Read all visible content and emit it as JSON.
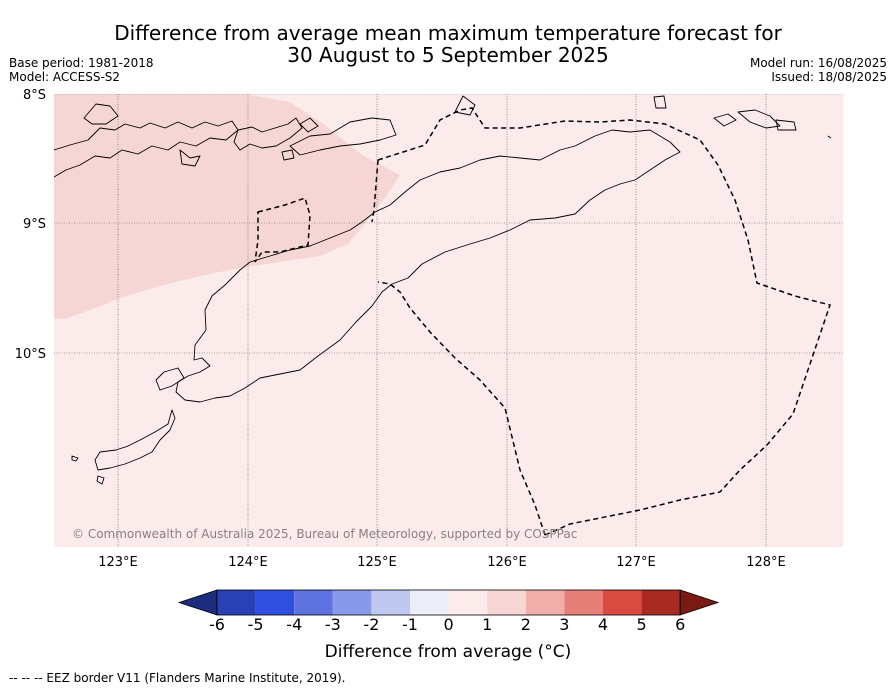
{
  "title": {
    "line1": "Difference from average mean maximum temperature forecast for",
    "line2": "30 August to 5 September 2025"
  },
  "meta": {
    "base_period": "Base period: 1981-2018",
    "model": "Model: ACCESS-S2",
    "model_run": "Model run: 16/08/2025",
    "issued": "Issued: 18/08/2025"
  },
  "map": {
    "lat_labels": [
      "8°S",
      "9°S",
      "10°S"
    ],
    "lon_labels": [
      "123°E",
      "124°E",
      "125°E",
      "126°E",
      "127°E",
      "128°E"
    ],
    "copyright": "© Commonwealth of Australia 2025, Bureau of Meteorology, supported by COSPPac",
    "colors": {
      "anomaly_0_1": "#fbeceb",
      "anomaly_1_2": "#f6d6d4",
      "gridline": "#555555",
      "coastline": "#000000"
    }
  },
  "colorbar": {
    "ticks": [
      "-6",
      "-5",
      "-4",
      "-3",
      "-2",
      "-1",
      "0",
      "1",
      "2",
      "3",
      "4",
      "5",
      "6"
    ],
    "colors": [
      "#1c2d7e",
      "#2a41b6",
      "#2f4fe0",
      "#5e72e0",
      "#8799e8",
      "#c0c8f2",
      "#eceffa",
      "#fbeceb",
      "#f6d6d4",
      "#efaea9",
      "#e57f78",
      "#d94a40",
      "#a82a21",
      "#7a1a12"
    ],
    "label": "Difference from average (°C)"
  },
  "footer": "-- -- -- EEZ border V11 (Flanders Marine Institute, 2019)."
}
